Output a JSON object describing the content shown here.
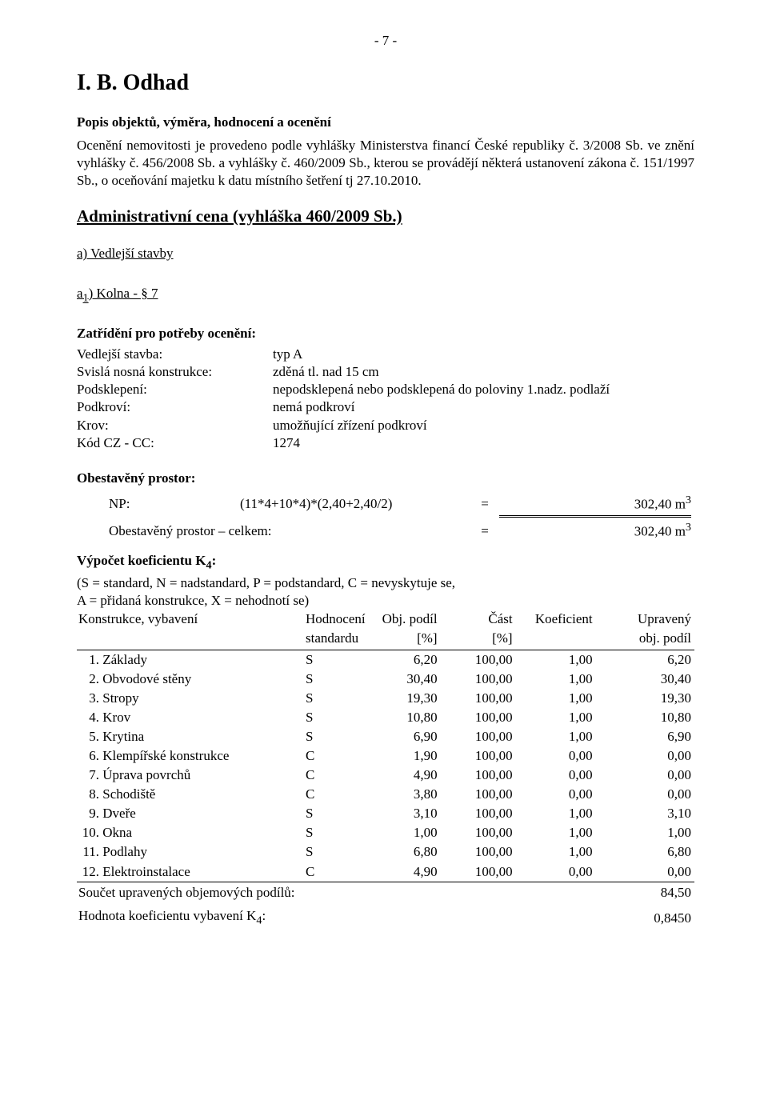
{
  "page_number_label": "- 7 -",
  "title": "I. B. Odhad",
  "subhead": "Popis objektů, výměra, hodnocení a ocenění",
  "intro": "Ocenění nemovitosti je provedeno podle vyhlášky Ministerstva financí České republiky č. 3/2008 Sb. ve znění vyhlášky č. 456/2008 Sb. a vyhlášky č. 460/2009 Sb., kterou se provádějí některá ustanovení zákona č. 151/1997 Sb., o oceňování majetku k datu místního šetření tj 27.10.2010.",
  "admin_title": "Administrativní cena (vyhláška 460/2009 Sb.)",
  "section_a": "a) Vedlejší stavby",
  "section_a1_prefix": "a",
  "section_a1_sub": "1",
  "section_a1_suffix": ") Kolna - § 7",
  "zat_head": "Zatřídění pro potřeby ocenění:",
  "kv": {
    "r1k": "Vedlejší stavba:",
    "r1v": "typ A",
    "r2k": "Svislá nosná konstrukce:",
    "r2v": "zděná tl. nad 15 cm",
    "r3k": "Podsklepení:",
    "r3v": "nepodsklepená nebo podsklepená do poloviny 1.nadz. podlaží",
    "r4k": "Podkroví:",
    "r4v": "nemá podkroví",
    "r5k": "Krov:",
    "r5v": "umožňující zřízení podkroví",
    "r6k": "Kód CZ - CC:",
    "r6v": "1274"
  },
  "obest_head": "Obestavěný prostor:",
  "np_label": "NP:",
  "np_formula": "(11*4+10*4)*(2,40+2,40/2)",
  "np_eq": "=",
  "np_val": "302,40 m",
  "np_exp": "3",
  "tot_label": "Obestavěný prostor – celkem:",
  "tot_eq": "=",
  "tot_val": "302,40 m",
  "tot_exp": "3",
  "k4_head_prefix": "Výpočet koeficientu K",
  "k4_head_sub": "4",
  "k4_head_suffix": ":",
  "k4_line1": "(S = standard, N = nadstandard, P = podstandard, C = nevyskytuje se,",
  "k4_line2": "A = přidaná konstrukce, X = nehodnotí se)",
  "hdr": {
    "kv": "Konstrukce, vybavení",
    "hod1": "Hodnocení",
    "hod2": "standardu",
    "obj1": "Obj. podíl",
    "obj2": "[%]",
    "cast1": "Část",
    "cast2": "[%]",
    "koef": "Koeficient",
    "upr1": "Upravený",
    "upr2": "obj. podíl"
  },
  "rows": [
    {
      "idx": "1.",
      "name": "Základy",
      "hod": "S",
      "obj": "6,20",
      "cast": "100,00",
      "koef": "1,00",
      "upr": "6,20"
    },
    {
      "idx": "2.",
      "name": "Obvodové stěny",
      "hod": "S",
      "obj": "30,40",
      "cast": "100,00",
      "koef": "1,00",
      "upr": "30,40"
    },
    {
      "idx": "3.",
      "name": "Stropy",
      "hod": "S",
      "obj": "19,30",
      "cast": "100,00",
      "koef": "1,00",
      "upr": "19,30"
    },
    {
      "idx": "4.",
      "name": "Krov",
      "hod": "S",
      "obj": "10,80",
      "cast": "100,00",
      "koef": "1,00",
      "upr": "10,80"
    },
    {
      "idx": "5.",
      "name": "Krytina",
      "hod": "S",
      "obj": "6,90",
      "cast": "100,00",
      "koef": "1,00",
      "upr": "6,90"
    },
    {
      "idx": "6.",
      "name": "Klempířské konstrukce",
      "hod": "C",
      "obj": "1,90",
      "cast": "100,00",
      "koef": "0,00",
      "upr": "0,00"
    },
    {
      "idx": "7.",
      "name": "Úprava povrchů",
      "hod": "C",
      "obj": "4,90",
      "cast": "100,00",
      "koef": "0,00",
      "upr": "0,00"
    },
    {
      "idx": "8.",
      "name": "Schodiště",
      "hod": "C",
      "obj": "3,80",
      "cast": "100,00",
      "koef": "0,00",
      "upr": "0,00"
    },
    {
      "idx": "9.",
      "name": "Dveře",
      "hod": "S",
      "obj": "3,10",
      "cast": "100,00",
      "koef": "1,00",
      "upr": "3,10"
    },
    {
      "idx": "10.",
      "name": "Okna",
      "hod": "S",
      "obj": "1,00",
      "cast": "100,00",
      "koef": "1,00",
      "upr": "1,00"
    },
    {
      "idx": "11.",
      "name": "Podlahy",
      "hod": "S",
      "obj": "6,80",
      "cast": "100,00",
      "koef": "1,00",
      "upr": "6,80"
    },
    {
      "idx": "12.",
      "name": "Elektroinstalace",
      "hod": "C",
      "obj": "4,90",
      "cast": "100,00",
      "koef": "0,00",
      "upr": "0,00"
    }
  ],
  "sum_label": "Součet upravených objemových podílů:",
  "sum_val": "84,50",
  "k4_res_prefix": "Hodnota koeficientu vybavení K",
  "k4_res_sub": "4",
  "k4_res_suffix": ":",
  "k4_res_val": "0,8450"
}
